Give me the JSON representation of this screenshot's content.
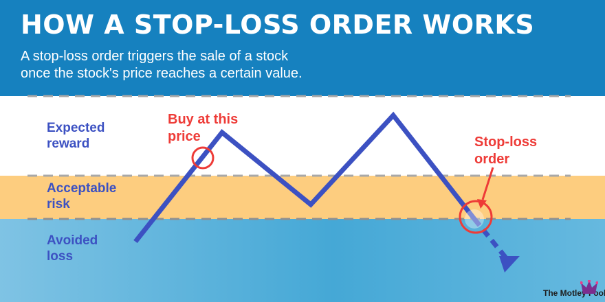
{
  "header": {
    "title": "HOW A STOP-LOSS ORDER WORKS",
    "subtitle_line1": "A stop-loss order triggers the sale of a stock",
    "subtitle_line2": "once the stock's price reaches a certain value."
  },
  "zones": {
    "reward": {
      "line1": "Expected",
      "line2": "reward"
    },
    "risk": {
      "line1": "Acceptable",
      "line2": "risk"
    },
    "loss": {
      "line1": "Avoided",
      "line2": "loss"
    }
  },
  "callouts": {
    "buy": {
      "line1": "Buy at this",
      "line2": "price"
    },
    "stop": {
      "line1": "Stop-loss",
      "line2": "order"
    }
  },
  "brand": {
    "name": "The Motley Fool",
    "logo_icon": "jester-hat-icon"
  },
  "colors": {
    "header_bg": "#1681bf",
    "risk_band": "#fdcd7f",
    "loss_band": "#45a8d6",
    "price_line": "#3c51c2",
    "callout_red": "#ee3b37"
  }
}
